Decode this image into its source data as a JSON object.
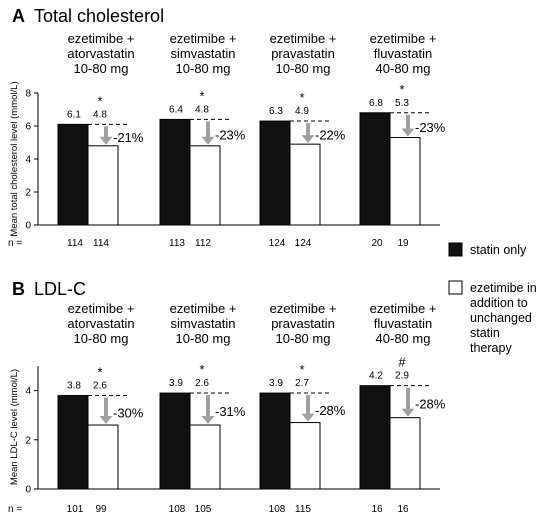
{
  "legend": {
    "statin_label": "statin only",
    "ezetimibe_label": "ezetimibe in addition to unchanged statin therapy",
    "statin_color": "#111111",
    "ezetimibe_color": "#ffffff",
    "arrow_color": "#a0a0a0"
  },
  "chart_data": [
    {
      "type": "bar",
      "panel": "A",
      "title": "Total cholesterol",
      "ylabel": "Mean total cholesterol level (mmol/L)",
      "ylim": [
        0,
        8
      ],
      "yticks": [
        0,
        2,
        4,
        6,
        8
      ],
      "n_prefix": "n =",
      "groups": [
        {
          "drug": "ezetimibe +",
          "statin": "atorvastatin",
          "dose": "10-80 mg",
          "statin_only": 6.1,
          "ezetimibe_added": 4.8,
          "statin_only_label": "6.1",
          "ezetimibe_added_label": "4.8",
          "sig": "*",
          "change": "-21%",
          "n_statin": "114",
          "n_ezetimibe": "114"
        },
        {
          "drug": "ezetimibe +",
          "statin": "simvastatin",
          "dose": "10-80 mg",
          "statin_only": 6.4,
          "ezetimibe_added": 4.8,
          "statin_only_label": "6.4",
          "ezetimibe_added_label": "4.8",
          "sig": "*",
          "change": "-23%",
          "n_statin": "113",
          "n_ezetimibe": "112"
        },
        {
          "drug": "ezetimibe +",
          "statin": "pravastatin",
          "dose": "10-80 mg",
          "statin_only": 6.3,
          "ezetimibe_added": 4.9,
          "statin_only_label": "6.3",
          "ezetimibe_added_label": "4.9",
          "sig": "*",
          "change": "-22%",
          "n_statin": "124",
          "n_ezetimibe": "124"
        },
        {
          "drug": "ezetimibe +",
          "statin": "fluvastatin",
          "dose": "40-80 mg",
          "statin_only": 6.8,
          "ezetimibe_added": 5.3,
          "statin_only_label": "6.8",
          "ezetimibe_added_label": "5.3",
          "sig": "*",
          "change": "-23%",
          "n_statin": "20",
          "n_ezetimibe": "19"
        }
      ]
    },
    {
      "type": "bar",
      "panel": "B",
      "title": "LDL-C",
      "ylabel": "Mean LDL-C level (mmol/L)",
      "ylim": [
        0,
        5
      ],
      "yticks": [
        0,
        2,
        4
      ],
      "n_prefix": "n =",
      "groups": [
        {
          "drug": "ezetimibe +",
          "statin": "atorvastatin",
          "dose": "10-80 mg",
          "statin_only": 3.8,
          "ezetimibe_added": 2.6,
          "statin_only_label": "3.8",
          "ezetimibe_added_label": "2.6",
          "sig": "*",
          "change": "-30%",
          "n_statin": "101",
          "n_ezetimibe": "99"
        },
        {
          "drug": "ezetimibe +",
          "statin": "simvastatin",
          "dose": "10-80 mg",
          "statin_only": 3.9,
          "ezetimibe_added": 2.6,
          "statin_only_label": "3.9",
          "ezetimibe_added_label": "2.6",
          "sig": "*",
          "change": "-31%",
          "n_statin": "108",
          "n_ezetimibe": "105"
        },
        {
          "drug": "ezetimibe +",
          "statin": "pravastatin",
          "dose": "10-80 mg",
          "statin_only": 3.9,
          "ezetimibe_added": 2.7,
          "statin_only_label": "3.9",
          "ezetimibe_added_label": "2.7",
          "sig": "*",
          "change": "-28%",
          "n_statin": "108",
          "n_ezetimibe": "115"
        },
        {
          "drug": "ezetimibe +",
          "statin": "fluvastatin",
          "dose": "40-80 mg",
          "statin_only": 4.2,
          "ezetimibe_added": 2.9,
          "statin_only_label": "4.2",
          "ezetimibe_added_label": "2.9",
          "sig": "#",
          "change": "-28%",
          "n_statin": "16",
          "n_ezetimibe": "16"
        }
      ]
    }
  ]
}
